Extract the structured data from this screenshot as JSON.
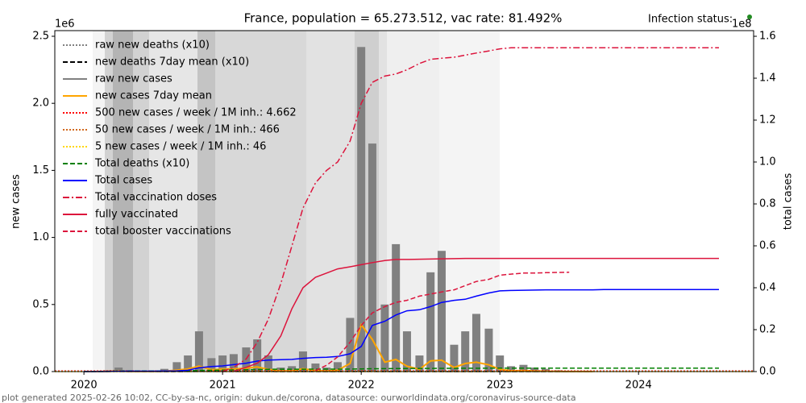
{
  "chart_data": {
    "type": "line",
    "title": "France, population = 65.273.512, vac rate: 81.492%",
    "ylabel": "new cases",
    "y2label": "total cases",
    "y_multiplier": "1e6",
    "y2_multiplier": "1e8",
    "status_label": "Infection status:",
    "footer": "plot generated 2025-02-26 10:02, CC-by-sa-nc, origin: dukun.de/corona, datasource: ourworldindata.org/coronavirus-source-data",
    "xlim": [
      2019.79,
      2024.83
    ],
    "xticks": [
      2020,
      2021,
      2022,
      2023,
      2024
    ],
    "ylim": [
      0,
      2.542
    ],
    "yticks": [
      {
        "value": 0,
        "label": "0.0"
      },
      0.5,
      {
        "value": 1,
        "label": "1.0"
      },
      1.5,
      {
        "value": 2,
        "label": "2.0"
      },
      2.5
    ],
    "y2lim": [
      0,
      1.627
    ],
    "y2ticks": [
      {
        "value": 0,
        "label": "0.0"
      },
      0.2,
      0.4,
      0.6,
      0.8,
      {
        "value": 1,
        "label": "1.0"
      },
      1.2,
      1.4,
      1.6
    ],
    "legend": "upper left",
    "x": [
      2020.0,
      2020.08,
      2020.17,
      2020.25,
      2020.33,
      2020.42,
      2020.5,
      2020.58,
      2020.67,
      2020.75,
      2020.83,
      2020.92,
      2021.0,
      2021.08,
      2021.17,
      2021.25,
      2021.33,
      2021.42,
      2021.5,
      2021.58,
      2021.67,
      2021.75,
      2021.83,
      2021.92,
      2022.0,
      2022.08,
      2022.17,
      2022.25,
      2022.33,
      2022.42,
      2022.5,
      2022.58,
      2022.67,
      2022.75,
      2022.83,
      2022.92,
      2023.0,
      2023.08,
      2023.17,
      2023.25,
      2023.33,
      2023.42,
      2023.5,
      2023.58,
      2023.67,
      2023.75,
      2023.83,
      2023.92,
      2024.0,
      2024.08,
      2024.17,
      2024.25,
      2024.33,
      2024.42,
      2024.5,
      2024.58
    ],
    "series": [
      {
        "name": "raw new deaths (x10)",
        "kind": "line",
        "style": "dotted",
        "color": "#808080",
        "axis": "y",
        "values": [
          0,
          0,
          0.005,
          0.01,
          0.002,
          0.001,
          0.0005,
          0.0005,
          0.001,
          0.003,
          0.008,
          0.004,
          0.004,
          0.004,
          0.004,
          0.005,
          0.003,
          0.001,
          0.0005,
          0.002,
          0.001,
          0.0005,
          0.001,
          0.002,
          0.003,
          0.004,
          0.002,
          0.002,
          0.001,
          0.0005,
          0.001,
          0.001,
          0.0005,
          0.001,
          0.001,
          0.001,
          0.0005,
          0.0003,
          0.0003,
          0.0002,
          0.0001,
          0.0001,
          0.0001,
          0.0001,
          0.0001,
          null,
          null,
          null,
          null,
          null,
          null,
          null,
          null,
          null,
          null,
          null
        ]
      },
      {
        "name": "new deaths 7day mean (x10)",
        "kind": "line",
        "style": "dashed",
        "color": "#000000",
        "axis": "y",
        "values": [
          0,
          0,
          0.0007,
          0.0014,
          0.0003,
          0.0001,
          0.0001,
          0.0001,
          0.0001,
          0.0004,
          0.0011,
          0.0006,
          0.0006,
          0.0006,
          0.0006,
          0.0007,
          0.0004,
          0.0001,
          0.0001,
          0.0003,
          0.0001,
          0.0001,
          0.0001,
          0.0003,
          0.0004,
          0.0006,
          0.0003,
          0.0003,
          0.0001,
          0.0001,
          0.0001,
          0.0001,
          0.0001,
          0.0001,
          0.0001,
          0.0001,
          0.0001,
          0,
          0,
          0,
          0,
          0,
          0,
          0,
          0,
          null,
          null,
          null,
          null,
          null,
          null,
          null,
          null,
          null,
          null,
          null
        ]
      },
      {
        "name": "raw new cases",
        "kind": "bar",
        "color": "#808080",
        "axis": "y",
        "values": [
          0,
          0,
          0.01,
          0.03,
          0.01,
          0.003,
          0.005,
          0.02,
          0.07,
          0.12,
          0.3,
          0.1,
          0.12,
          0.13,
          0.18,
          0.24,
          0.12,
          0.03,
          0.04,
          0.15,
          0.06,
          0.03,
          0.07,
          0.4,
          2.42,
          1.7,
          0.5,
          0.95,
          0.3,
          0.12,
          0.74,
          0.9,
          0.2,
          0.3,
          0.43,
          0.32,
          0.12,
          0.04,
          0.05,
          0.03,
          0.02,
          0.01,
          0.005,
          0.004,
          0.003,
          null,
          null,
          null,
          null,
          null,
          null,
          null,
          null,
          null,
          null,
          null
        ]
      },
      {
        "name": "new cases 7day mean",
        "kind": "line",
        "style": "solid",
        "width": 2,
        "color": "#ffa500",
        "axis": "y",
        "values": [
          0,
          0,
          0.002,
          0.004,
          0.001,
          0.0005,
          0.001,
          0.003,
          0.01,
          0.02,
          0.04,
          0.014,
          0.018,
          0.019,
          0.026,
          0.034,
          0.017,
          0.004,
          0.006,
          0.021,
          0.008,
          0.004,
          0.01,
          0.06,
          0.35,
          0.24,
          0.07,
          0.09,
          0.04,
          0.017,
          0.08,
          0.085,
          0.03,
          0.06,
          0.07,
          0.05,
          0.017,
          0.006,
          0.007,
          0.004,
          0.003,
          0.0015,
          0.0007,
          0.0005,
          0.0004,
          null,
          null,
          null,
          null,
          null,
          null,
          null,
          null,
          null,
          null,
          null
        ]
      },
      {
        "name": "500 new cases / week / 1M inh.: 4.662",
        "kind": "hline",
        "style": "dotted",
        "color": "#ff0000",
        "axis": "y",
        "value": 0.004662
      },
      {
        "name": "50 new cases / week / 1M inh.: 466",
        "kind": "hline",
        "style": "dotted",
        "color": "#d2691e",
        "axis": "y",
        "value": 0.000466
      },
      {
        "name": "5 new cases / week / 1M inh.: 46",
        "kind": "hline",
        "style": "dotted",
        "color": "#ffd700",
        "axis": "y",
        "value": 4.6e-05
      },
      {
        "name": "Total deaths (x10)",
        "kind": "line",
        "style": "dashed",
        "color": "#008000",
        "axis": "y2",
        "values": [
          0,
          0,
          0.0004,
          0.0022,
          0.0028,
          0.003,
          0.003,
          0.0031,
          0.0032,
          0.0035,
          0.005,
          0.0062,
          0.0073,
          0.0082,
          0.0089,
          0.0098,
          0.0106,
          0.011,
          0.0111,
          0.0112,
          0.0114,
          0.0116,
          0.0117,
          0.012,
          0.0126,
          0.0135,
          0.014,
          0.0145,
          0.0148,
          0.0149,
          0.015,
          0.0152,
          0.0154,
          0.0156,
          0.0158,
          0.016,
          0.0163,
          0.0164,
          0.0165,
          0.0166,
          0.0166,
          0.0167,
          0.0167,
          0.0167,
          0.0167,
          0.0167,
          0.0167,
          0.0167,
          0.0167,
          0.0167,
          0.0167,
          0.0167,
          0.0167,
          0.0167,
          0.0167,
          0.0167
        ]
      },
      {
        "name": "Total cases",
        "kind": "line",
        "style": "solid",
        "color": "#0000ff",
        "axis": "y2",
        "values": [
          0,
          0,
          0.0005,
          0.0015,
          0.0018,
          0.0019,
          0.002,
          0.0025,
          0.0035,
          0.006,
          0.018,
          0.024,
          0.027,
          0.033,
          0.04,
          0.05,
          0.055,
          0.057,
          0.058,
          0.063,
          0.067,
          0.068,
          0.072,
          0.085,
          0.12,
          0.22,
          0.24,
          0.27,
          0.29,
          0.295,
          0.31,
          0.33,
          0.34,
          0.345,
          0.36,
          0.375,
          0.385,
          0.387,
          0.388,
          0.389,
          0.39,
          0.39,
          0.39,
          0.39,
          0.39,
          0.391,
          0.391,
          0.391,
          0.391,
          0.391,
          0.391,
          0.391,
          0.391,
          0.391,
          0.391,
          0.391
        ]
      },
      {
        "name": "Total vaccination doses",
        "kind": "line",
        "style": "dashdot",
        "color": "#dc143c",
        "axis": "y2",
        "values": [
          null,
          null,
          null,
          null,
          null,
          null,
          null,
          null,
          null,
          null,
          null,
          null,
          0.001,
          0.02,
          0.06,
          0.14,
          0.25,
          0.42,
          0.6,
          0.78,
          0.9,
          0.96,
          1.0,
          1.1,
          1.28,
          1.38,
          1.41,
          1.42,
          1.44,
          1.47,
          1.49,
          1.495,
          1.5,
          1.51,
          1.52,
          1.53,
          1.54,
          1.545,
          1.545,
          1.545,
          1.545,
          1.545,
          1.545,
          1.545,
          1.545,
          1.545,
          1.545,
          1.545,
          1.545,
          1.545,
          1.545,
          1.545,
          1.545,
          1.545,
          1.545,
          1.545
        ]
      },
      {
        "name": "fully vaccinated",
        "kind": "line",
        "style": "solid",
        "color": "#dc143c",
        "axis": "y2",
        "values": [
          null,
          null,
          null,
          null,
          null,
          null,
          null,
          null,
          null,
          null,
          null,
          null,
          null,
          0.001,
          0.02,
          0.04,
          0.08,
          0.17,
          0.3,
          0.4,
          0.45,
          0.47,
          0.49,
          0.5,
          0.51,
          0.52,
          0.53,
          0.535,
          0.535,
          0.536,
          0.537,
          0.538,
          0.539,
          0.54,
          0.54,
          0.54,
          0.54,
          0.54,
          0.54,
          0.54,
          0.54,
          0.54,
          0.54,
          0.54,
          0.54,
          0.54,
          0.54,
          0.54,
          0.54,
          0.54,
          0.54,
          0.54,
          0.54,
          0.54,
          0.54,
          0.54
        ]
      },
      {
        "name": "total booster vaccinations",
        "kind": "line",
        "style": "dashed",
        "color": "#dc143c",
        "axis": "y2",
        "values": [
          null,
          null,
          null,
          null,
          null,
          null,
          null,
          null,
          null,
          null,
          null,
          null,
          null,
          null,
          null,
          null,
          null,
          null,
          null,
          null,
          0.005,
          0.03,
          0.07,
          0.14,
          0.22,
          0.28,
          0.31,
          0.33,
          0.34,
          0.36,
          0.37,
          0.38,
          0.39,
          0.41,
          0.43,
          0.44,
          0.46,
          0.465,
          0.47,
          0.47,
          0.472,
          0.473,
          0.474,
          null,
          null,
          null,
          null,
          null,
          null,
          null,
          null,
          null,
          null,
          null,
          null,
          null
        ]
      }
    ]
  }
}
